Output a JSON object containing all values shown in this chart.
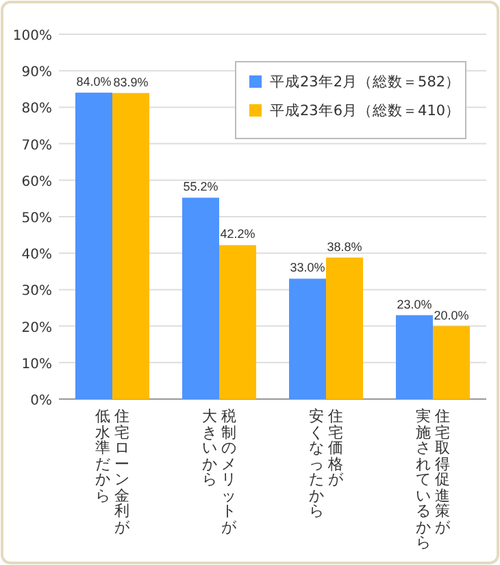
{
  "chart_data": {
    "type": "bar",
    "categories": [
      "住宅ローン金利が低水準だから",
      "税制のメリットが大きいから",
      "住宅価格が安くなったから",
      "住宅取得促進策が実施されているから"
    ],
    "series": [
      {
        "name": "平成23年2月（総数＝582）",
        "color": "#4d94ff",
        "values": [
          84.0,
          55.2,
          33.0,
          23.0
        ],
        "value_labels": [
          "84.0%",
          "55.2%",
          "33.0%",
          "23.0%"
        ]
      },
      {
        "name": "平成23年6月（総数＝410）",
        "color": "#ffbb00",
        "values": [
          83.9,
          42.2,
          38.8,
          20.0
        ],
        "value_labels": [
          "83.9%",
          "42.2%",
          "38.8%",
          "20.0%"
        ]
      }
    ],
    "ylim": [
      0,
      100
    ],
    "yticks": [
      {
        "value": 0,
        "label": "0%"
      },
      {
        "value": 10,
        "label": "10%"
      },
      {
        "value": 20,
        "label": "20%"
      },
      {
        "value": 30,
        "label": "30%"
      },
      {
        "value": 40,
        "label": "40%"
      },
      {
        "value": 50,
        "label": "50%"
      },
      {
        "value": 60,
        "label": "60%"
      },
      {
        "value": 70,
        "label": "70%"
      },
      {
        "value": 80,
        "label": "80%"
      },
      {
        "value": 90,
        "label": "90%"
      },
      {
        "value": 100,
        "label": "100%"
      }
    ],
    "grid": "y",
    "legend": "top right"
  }
}
